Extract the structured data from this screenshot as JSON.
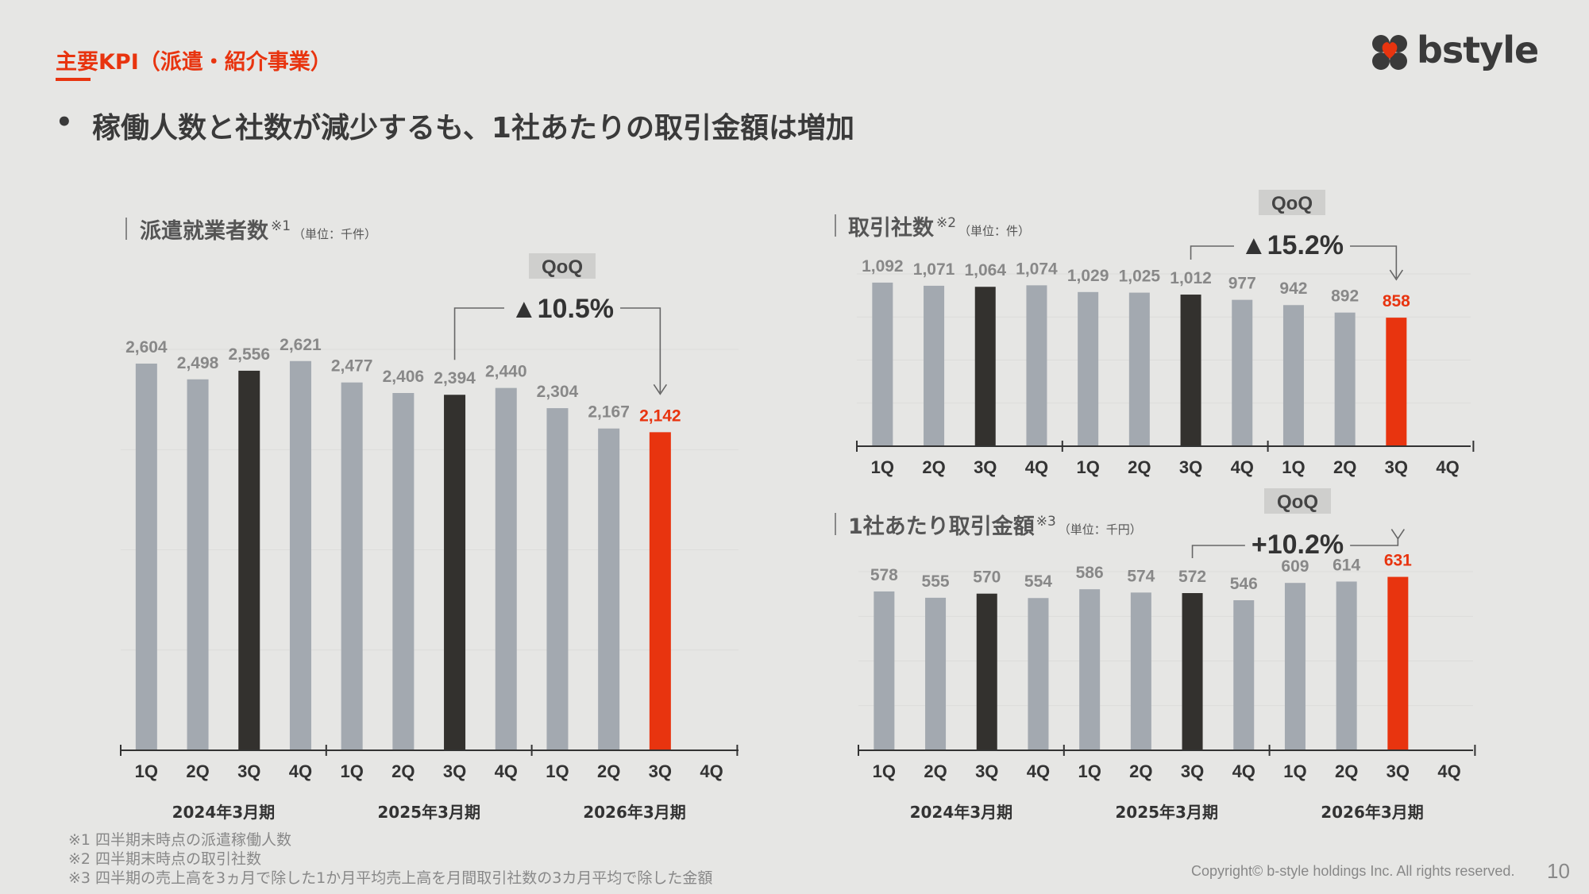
{
  "header": {
    "section_title": "主要KPI（派遣・紹介事業）",
    "bullet": "•",
    "headline": "稼働人数と社数が減少するも、1社あたりの取引金額は増加"
  },
  "logo": {
    "text": "bstyle",
    "icon": "clover-heart-icon"
  },
  "colors": {
    "bar": "#a3a9b0",
    "highlight": "#33312e",
    "current": "#e8340f",
    "axis": "#333333",
    "bg": "#e6e6e4"
  },
  "chart_data": [
    {
      "type": "bar",
      "title": "派遣就業者数",
      "title_note": "※1",
      "unit": "（単位：千件）",
      "categories": [
        "1Q",
        "2Q",
        "3Q",
        "4Q",
        "1Q",
        "2Q",
        "3Q",
        "4Q",
        "1Q",
        "2Q",
        "3Q",
        "4Q"
      ],
      "groups": [
        "2024年3月期",
        "2025年3月期",
        "2026年3月期"
      ],
      "values": [
        2604,
        2498,
        2556,
        2621,
        2477,
        2406,
        2394,
        2440,
        2304,
        2167,
        2142,
        null
      ],
      "labels": [
        "2,604",
        "2,498",
        "2,556",
        "2,621",
        "2,477",
        "2,406",
        "2,394",
        "2,440",
        "2,304",
        "2,167",
        "2,142",
        ""
      ],
      "highlight_index": [
        2,
        6
      ],
      "current_index": 10,
      "ylim": [
        0,
        2700
      ],
      "qoq": {
        "label": "QoQ",
        "value": "▲10.5%",
        "from_index": 6,
        "to_index": 10
      }
    },
    {
      "type": "bar",
      "title": "取引社数",
      "title_note": "※2",
      "unit": "（単位：件）",
      "categories": [
        "1Q",
        "2Q",
        "3Q",
        "4Q",
        "1Q",
        "2Q",
        "3Q",
        "4Q",
        "1Q",
        "2Q",
        "3Q",
        "4Q"
      ],
      "values": [
        1092,
        1071,
        1064,
        1074,
        1029,
        1025,
        1012,
        977,
        942,
        892,
        858,
        null
      ],
      "labels": [
        "1,092",
        "1,071",
        "1,064",
        "1,074",
        "1,029",
        "1,025",
        "1,012",
        "977",
        "942",
        "892",
        "858",
        ""
      ],
      "highlight_index": [
        2,
        6
      ],
      "current_index": 10,
      "ylim": [
        0,
        1150
      ],
      "qoq": {
        "label": "QoQ",
        "value": "▲15.2%",
        "from_index": 6,
        "to_index": 10
      }
    },
    {
      "type": "bar",
      "title": "1社あたり取引金額",
      "title_note": "※3",
      "unit": "（単位：千円）",
      "categories": [
        "1Q",
        "2Q",
        "3Q",
        "4Q",
        "1Q",
        "2Q",
        "3Q",
        "4Q",
        "1Q",
        "2Q",
        "3Q",
        "4Q"
      ],
      "groups": [
        "2024年3月期",
        "2025年3月期",
        "2026年3月期"
      ],
      "values": [
        578,
        555,
        570,
        554,
        586,
        574,
        572,
        546,
        609,
        614,
        631,
        null
      ],
      "labels": [
        "578",
        "555",
        "570",
        "554",
        "586",
        "574",
        "572",
        "546",
        "609",
        "614",
        "631",
        ""
      ],
      "highlight_index": [
        2,
        6
      ],
      "current_index": 10,
      "ylim": [
        0,
        650
      ],
      "qoq": {
        "label": "QoQ",
        "value": "+10.2%",
        "from_index": 6,
        "to_index": 10
      }
    }
  ],
  "notes": [
    "※1 四半期末時点の派遣稼働人数",
    "※2 四半期末時点の取引社数",
    "※3 四半期の売上高を3ヵ月で除した1か月平均売上高を月間取引社数の3カ月平均で除した金額"
  ],
  "footer": {
    "copyright": "Copyright© b-style holdings Inc. All rights reserved.",
    "page": "10"
  }
}
